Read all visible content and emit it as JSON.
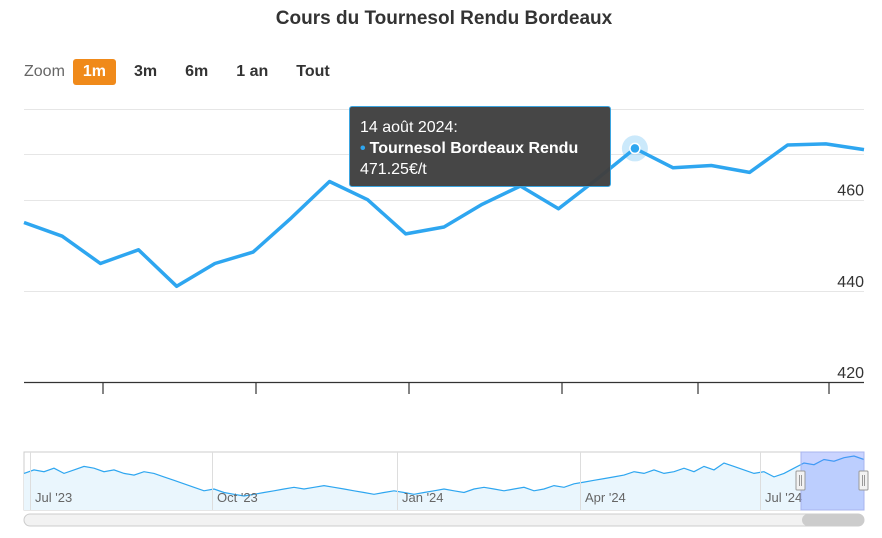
{
  "chart_data": {
    "type": "line",
    "title": "Cours du Tournesol Rendu Bordeaux",
    "zoom": {
      "label": "Zoom",
      "buttons": [
        "1m",
        "3m",
        "6m",
        "1 an",
        "Tout"
      ],
      "selected": "1m"
    },
    "y_ticks": [
      420,
      440,
      460
    ],
    "ylim": [
      420,
      481
    ],
    "series": [
      {
        "name": "Tournesol Bordeaux Rendu",
        "color": "#2ea6f0",
        "values": [
          455,
          452,
          446,
          449,
          441,
          446,
          448.5,
          456,
          464,
          460,
          452.5,
          454,
          459,
          463,
          458,
          464.5,
          471.25,
          467,
          467.5,
          466,
          472,
          472.25,
          471
        ]
      }
    ],
    "tooltip": {
      "date": "14 août 2024:",
      "series": "Tournesol Bordeaux Rendu",
      "value": "471.25€/t"
    },
    "navigator": {
      "labels": [
        "Jul '23",
        "Oct '23",
        "Jan '24",
        "Apr '24",
        "Jul '24"
      ],
      "values": [
        470,
        472,
        471,
        473,
        470,
        472,
        474,
        473,
        471,
        472,
        470,
        469,
        471,
        470,
        468,
        466,
        464,
        462,
        460,
        461,
        459,
        458,
        457,
        458,
        459,
        460,
        461,
        462,
        461,
        462,
        463,
        462,
        461,
        460,
        459,
        458,
        459,
        460,
        459,
        458,
        459,
        460,
        461,
        460,
        459,
        461,
        462,
        461,
        460,
        461,
        462,
        460,
        461,
        463,
        462,
        464,
        465,
        466,
        467,
        468,
        469,
        471,
        470,
        472,
        470,
        471,
        473,
        471,
        474,
        472,
        476,
        474,
        472,
        470,
        471,
        468,
        470,
        473,
        476,
        475,
        478,
        477,
        479,
        480,
        478
      ]
    }
  }
}
